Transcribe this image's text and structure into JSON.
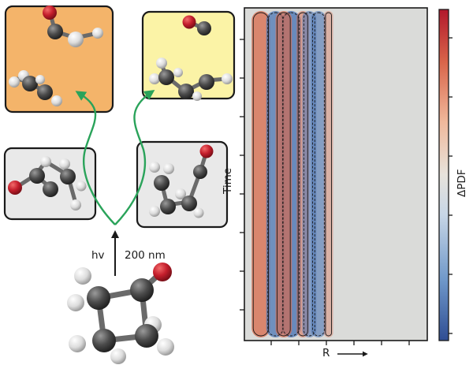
{
  "colors": {
    "panel_orange": "#f4b46a",
    "panel_yellow": "#fbf3a6",
    "panel_grey": "#e9e9e9",
    "arrow_green": "#2aa35a",
    "atom_carbon": "#4a4a4a",
    "atom_hydrogen": "#e2e2e2",
    "atom_oxygen": "#c8202e",
    "map_positive": "#d96a4c",
    "map_negative": "#4f77b6",
    "map_background": "#dadbd9"
  },
  "scheme": {
    "excitation_label": "hv",
    "wavelength_label": "200 nm",
    "panels": [
      {
        "name": "panel-products-ketene-ethylene",
        "fill": "panel_orange"
      },
      {
        "name": "panel-products-co-cyclopropane",
        "fill": "panel_yellow"
      },
      {
        "name": "panel-intermediate-ring-open-left",
        "fill": "panel_grey"
      },
      {
        "name": "panel-intermediate-ring-open-right",
        "fill": "panel_grey"
      }
    ]
  },
  "map": {
    "y_axis_label": "Time",
    "x_axis_label": "R",
    "colorbar_label": "ΔPDF",
    "colorbar_colors": [
      "#2f4d93",
      "#6e97c9",
      "#c7d6e6",
      "#e7e3dc",
      "#f0b89b",
      "#d9654a",
      "#b2182b"
    ],
    "bands": [
      {
        "r": 0.09,
        "sign": "positive",
        "strength": 0.85
      },
      {
        "r": 0.17,
        "sign": "negative",
        "strength": 0.85
      },
      {
        "r": 0.255,
        "sign": "negative",
        "strength": 0.95
      },
      {
        "r": 0.215,
        "sign": "positive",
        "strength": 0.7
      },
      {
        "r": 0.32,
        "sign": "positive",
        "strength": 0.45
      },
      {
        "r": 0.355,
        "sign": "negative",
        "strength": 0.55
      },
      {
        "r": 0.405,
        "sign": "negative",
        "strength": 0.6
      },
      {
        "r": 0.46,
        "sign": "positive",
        "strength": 0.2
      }
    ]
  }
}
